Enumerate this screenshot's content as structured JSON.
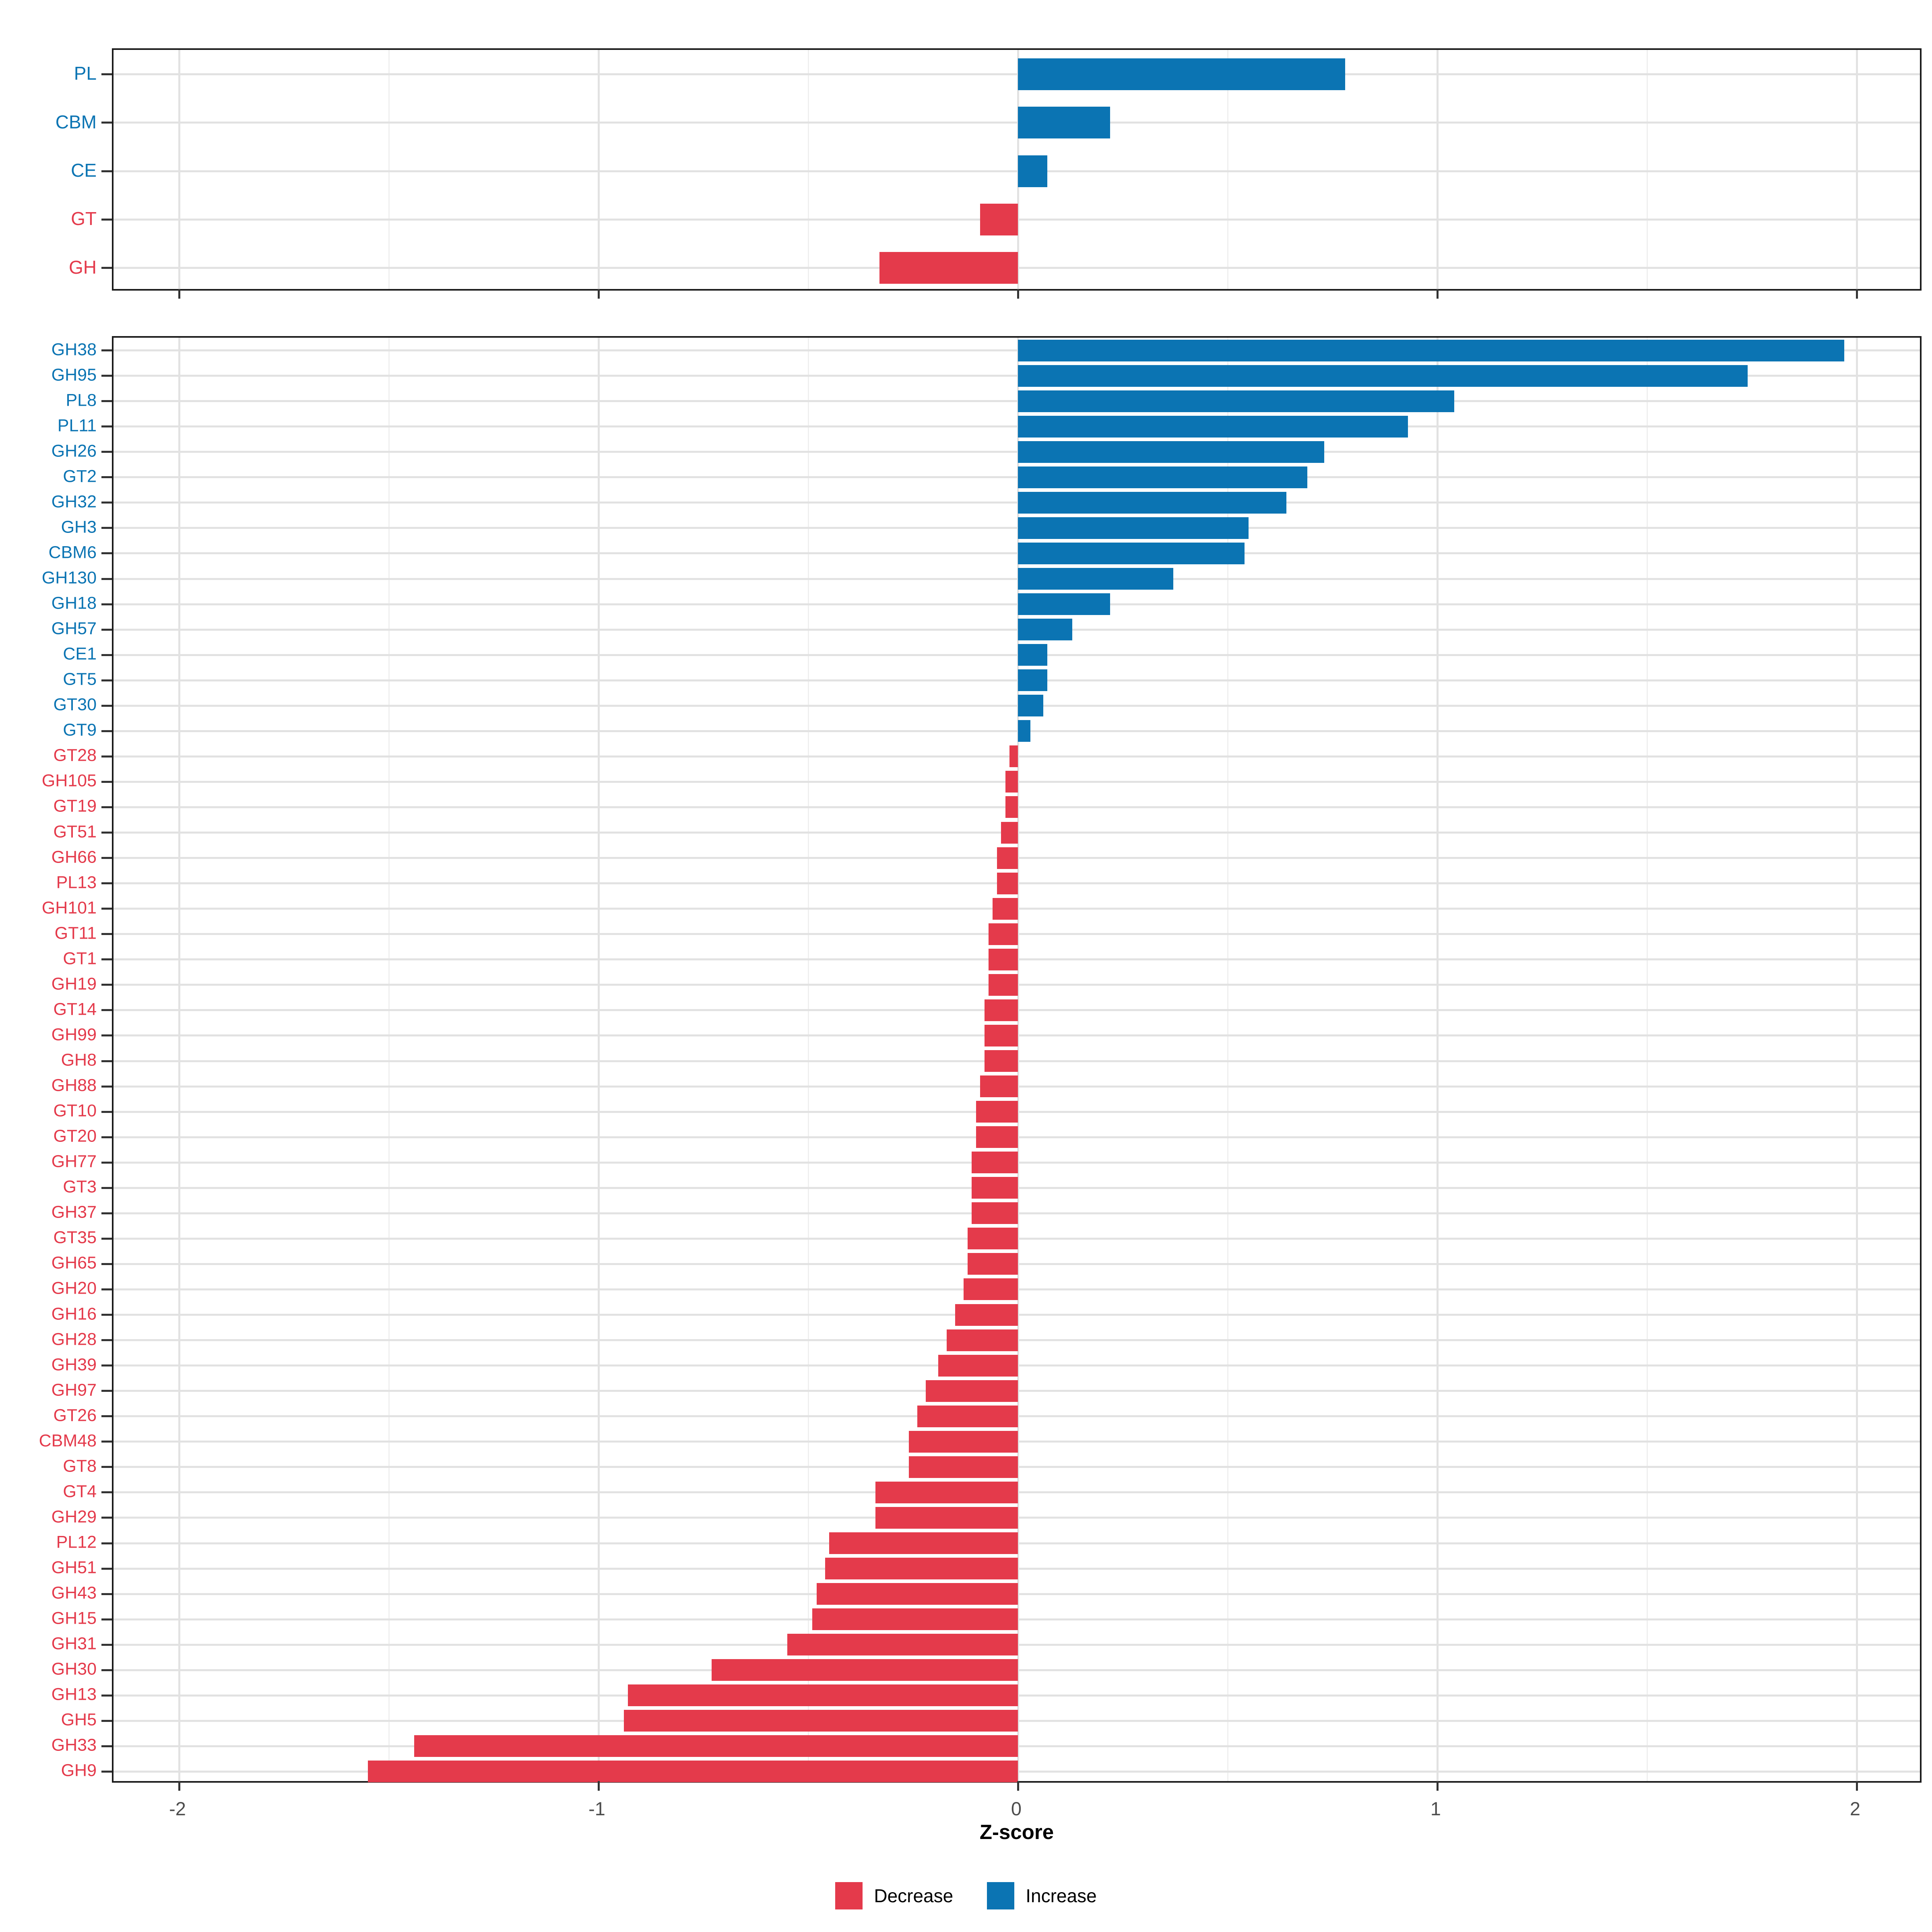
{
  "colors": {
    "decrease": "#e43a4b",
    "increase": "#0b74b3",
    "grid_major": "#e2e2e2",
    "grid_minor": "#efefef",
    "panel_border": "#1b1b1b",
    "tick_mark": "#333333",
    "tick_label_color": "#4d4d4d"
  },
  "axis": {
    "label": "Z-score",
    "ticks": [
      "-2",
      "-1",
      "0",
      "1",
      "2"
    ],
    "tick_values": [
      -2,
      -1,
      0,
      1,
      2
    ],
    "minor_tick_values": [
      -1.5,
      -0.5,
      0.5,
      1.5
    ],
    "xlim": [
      -2.156,
      2.158
    ]
  },
  "legend": {
    "items": [
      {
        "label": "Decrease",
        "key": "decrease"
      },
      {
        "label": "Increase",
        "key": "increase"
      }
    ]
  },
  "chart_data": [
    {
      "type": "bar",
      "orientation": "horizontal",
      "panel": "enzyme-class",
      "xlabel": "Z-score",
      "xlim": [
        -2.156,
        2.158
      ],
      "grid": true,
      "legend_position": "bottom",
      "categories": [
        "PL",
        "CBM",
        "CE",
        "GT",
        "GH"
      ],
      "values": [
        0.78,
        0.22,
        0.07,
        -0.09,
        -0.33
      ]
    },
    {
      "type": "bar",
      "orientation": "horizontal",
      "panel": "enzyme-family",
      "xlabel": "Z-score",
      "xlim": [
        -2.156,
        2.158
      ],
      "grid": true,
      "legend_position": "bottom",
      "categories": [
        "GH38",
        "GH95",
        "PL8",
        "PL11",
        "GH26",
        "GT2",
        "GH32",
        "GH3",
        "CBM6",
        "GH130",
        "GH18",
        "GH57",
        "CE1",
        "GT5",
        "GT30",
        "GT9",
        "GT28",
        "GH105",
        "GT19",
        "GT51",
        "GH66",
        "PL13",
        "GH101",
        "GT11",
        "GT1",
        "GH19",
        "GT14",
        "GH99",
        "GH8",
        "GH88",
        "GT10",
        "GT20",
        "GH77",
        "GT3",
        "GH37",
        "GT35",
        "GH65",
        "GH20",
        "GH16",
        "GH28",
        "GH39",
        "GH97",
        "GT26",
        "CBM48",
        "GT8",
        "GT4",
        "GH29",
        "PL12",
        "GH51",
        "GH43",
        "GH15",
        "GH31",
        "GH30",
        "GH13",
        "GH5",
        "GH33",
        "GH9"
      ],
      "values": [
        1.97,
        1.74,
        1.04,
        0.93,
        0.73,
        0.69,
        0.64,
        0.55,
        0.54,
        0.37,
        0.22,
        0.13,
        0.07,
        0.07,
        0.06,
        0.03,
        -0.02,
        -0.03,
        -0.03,
        -0.04,
        -0.05,
        -0.05,
        -0.06,
        -0.07,
        -0.07,
        -0.07,
        -0.08,
        -0.08,
        -0.08,
        -0.09,
        -0.1,
        -0.1,
        -0.11,
        -0.11,
        -0.11,
        -0.12,
        -0.12,
        -0.13,
        -0.15,
        -0.17,
        -0.19,
        -0.22,
        -0.24,
        -0.26,
        -0.26,
        -0.34,
        -0.34,
        -0.45,
        -0.46,
        -0.48,
        -0.49,
        -0.55,
        -0.73,
        -0.93,
        -0.94,
        -1.44,
        -1.55
      ]
    }
  ]
}
